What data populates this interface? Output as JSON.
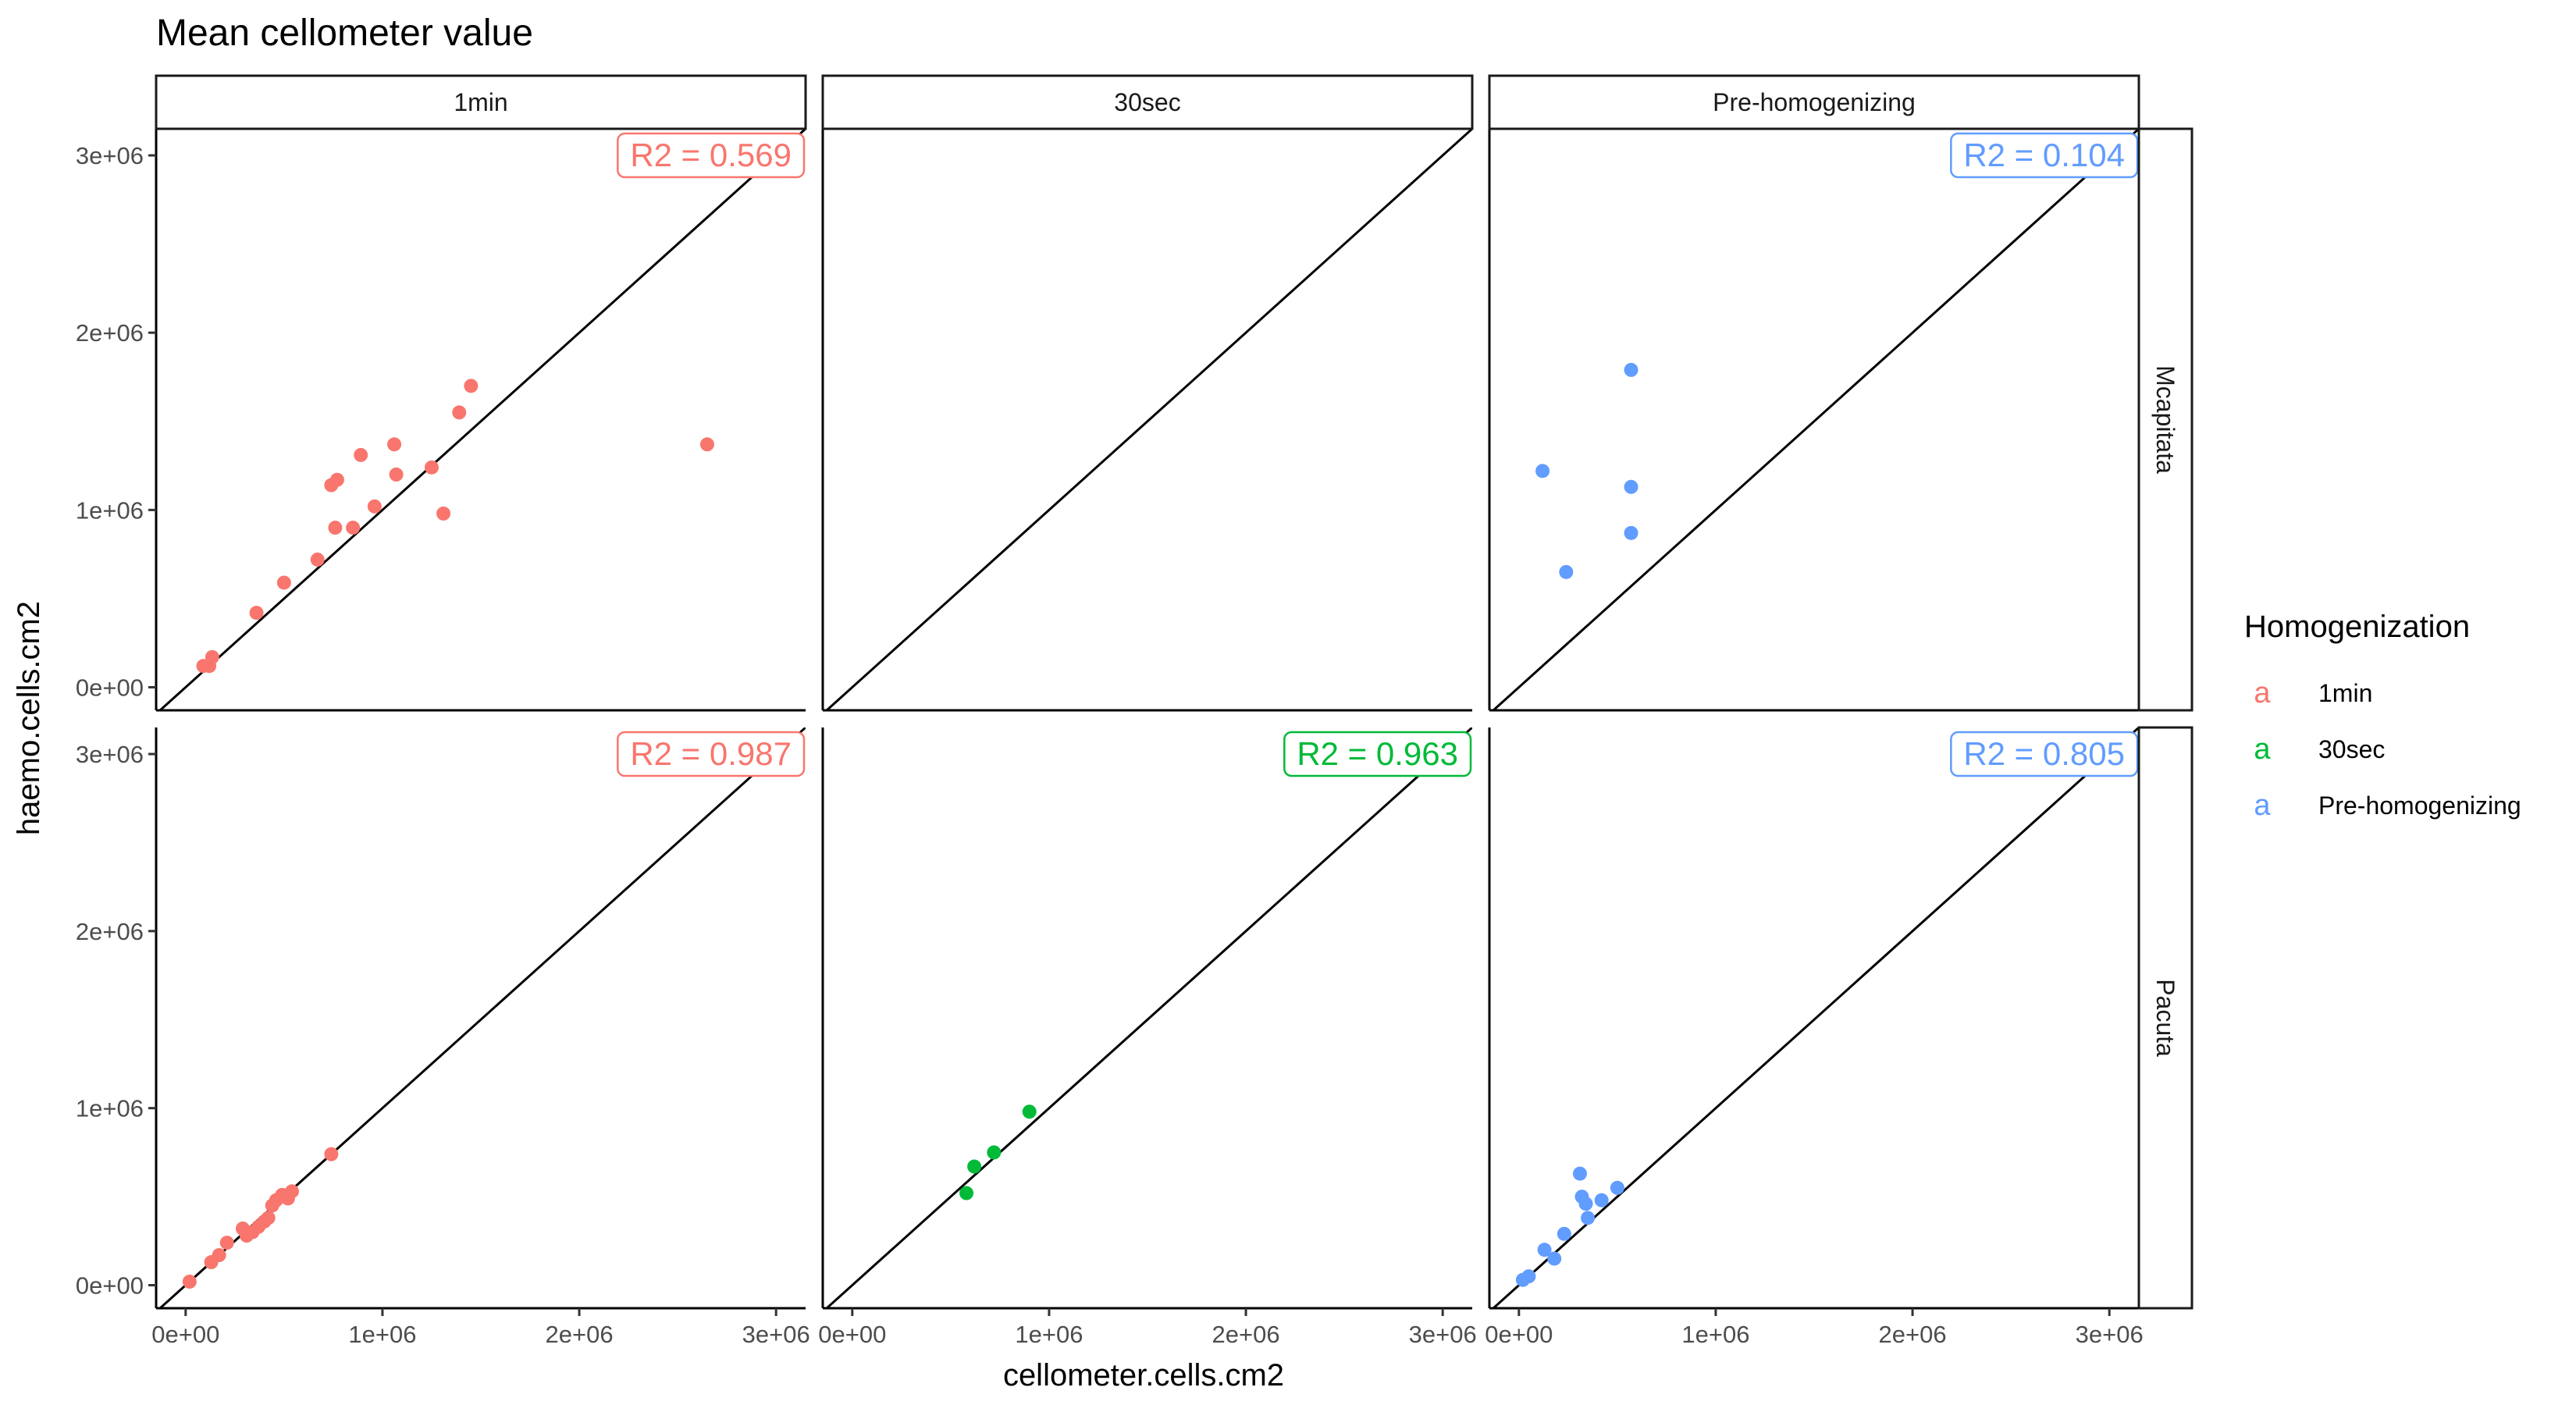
{
  "chart_data": {
    "type": "scatter",
    "title": "Mean cellometer value",
    "xlabel": "cellometer.cells.cm2",
    "ylabel": "haemo.cells.cm2",
    "xlim": [
      -150000,
      3150000
    ],
    "ylim": [
      -130000,
      3150000
    ],
    "x_ticks": [
      0,
      1000000,
      2000000,
      3000000
    ],
    "x_tick_labels": [
      "0e+00",
      "1e+06",
      "2e+06",
      "3e+06"
    ],
    "y_ticks": [
      0,
      1000000,
      2000000,
      3000000
    ],
    "y_tick_labels": [
      "0e+00",
      "1e+06",
      "2e+06",
      "3e+06"
    ],
    "reference_line": "y = x",
    "columns": [
      "1min",
      "30sec",
      "Pre-homogenizing"
    ],
    "rows": [
      "Mcapitata",
      "Pacuta"
    ],
    "legend": {
      "title": "Homogenization",
      "position": "right",
      "key_glyph": "a",
      "entries": [
        {
          "label": "1min",
          "color": "#F8766D"
        },
        {
          "label": "30sec",
          "color": "#00BA38"
        },
        {
          "label": "Pre-homogenizing",
          "color": "#619CFF"
        }
      ]
    },
    "panels": [
      {
        "column": "1min",
        "row": "Mcapitata",
        "color": "#F8766D",
        "r2": "R2 =  0.569",
        "points": [
          [
            90000,
            120000
          ],
          [
            120000,
            120000
          ],
          [
            135000,
            170000
          ],
          [
            360000,
            420000
          ],
          [
            500000,
            590000
          ],
          [
            670000,
            720000
          ],
          [
            740000,
            1140000
          ],
          [
            770000,
            1170000
          ],
          [
            760000,
            900000
          ],
          [
            850000,
            900000
          ],
          [
            890000,
            1310000
          ],
          [
            960000,
            1020000
          ],
          [
            1060000,
            1370000
          ],
          [
            1070000,
            1200000
          ],
          [
            1250000,
            1240000
          ],
          [
            1310000,
            980000
          ],
          [
            1390000,
            1550000
          ],
          [
            1450000,
            1700000
          ],
          [
            2650000,
            1370000
          ]
        ]
      },
      {
        "column": "30sec",
        "row": "Mcapitata",
        "color": "#00BA38",
        "r2": "",
        "points": []
      },
      {
        "column": "Pre-homogenizing",
        "row": "Mcapitata",
        "color": "#619CFF",
        "r2": "R2 =  0.104",
        "points": [
          [
            120000,
            1220000
          ],
          [
            240000,
            650000
          ],
          [
            570000,
            1790000
          ],
          [
            570000,
            1130000
          ],
          [
            570000,
            870000
          ]
        ]
      },
      {
        "column": "1min",
        "row": "Pacuta",
        "color": "#F8766D",
        "r2": "R2 =  0.987",
        "points": [
          [
            20000,
            20000
          ],
          [
            130000,
            130000
          ],
          [
            170000,
            170000
          ],
          [
            210000,
            240000
          ],
          [
            290000,
            320000
          ],
          [
            310000,
            280000
          ],
          [
            340000,
            300000
          ],
          [
            370000,
            330000
          ],
          [
            400000,
            360000
          ],
          [
            420000,
            380000
          ],
          [
            440000,
            450000
          ],
          [
            460000,
            480000
          ],
          [
            490000,
            510000
          ],
          [
            520000,
            490000
          ],
          [
            540000,
            530000
          ],
          [
            740000,
            740000
          ]
        ]
      },
      {
        "column": "30sec",
        "row": "Pacuta",
        "color": "#00BA38",
        "r2": "R2 =  0.963",
        "points": [
          [
            580000,
            520000
          ],
          [
            620000,
            670000
          ],
          [
            720000,
            750000
          ],
          [
            900000,
            980000
          ]
        ]
      },
      {
        "column": "Pre-homogenizing",
        "row": "Pacuta",
        "color": "#619CFF",
        "r2": "R2 =  0.805",
        "points": [
          [
            20000,
            30000
          ],
          [
            50000,
            50000
          ],
          [
            130000,
            200000
          ],
          [
            180000,
            150000
          ],
          [
            230000,
            290000
          ],
          [
            310000,
            630000
          ],
          [
            320000,
            500000
          ],
          [
            340000,
            460000
          ],
          [
            350000,
            380000
          ],
          [
            420000,
            480000
          ],
          [
            500000,
            550000
          ]
        ]
      }
    ]
  }
}
